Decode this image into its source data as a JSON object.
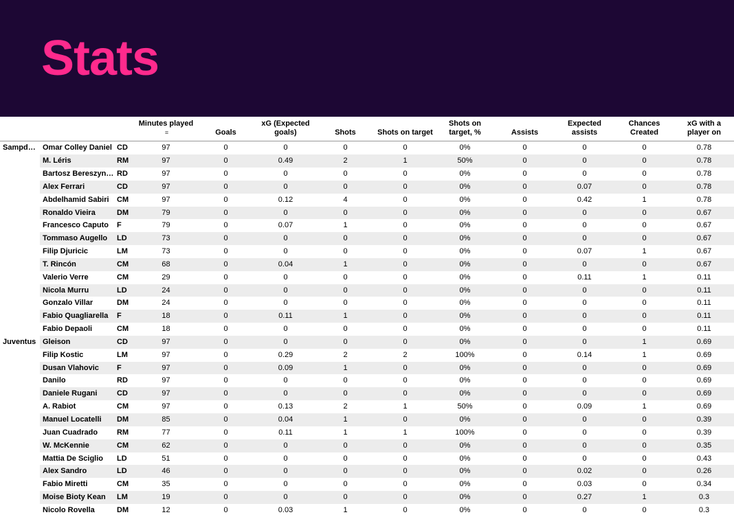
{
  "header": {
    "title": "Stats"
  },
  "colors": {
    "header_bg": "#1d0734",
    "title_color": "#ff2a8d",
    "row_alt_bg": "#ececec",
    "border_color": "#999999"
  },
  "table": {
    "sort_column_index": 3,
    "columns": [
      "",
      "",
      "",
      "Minutes played",
      "Goals",
      "xG (Expected goals)",
      "Shots",
      "Shots on target",
      "Shots on target, %",
      "Assists",
      "Expected assists",
      "Chances Created",
      "xG with a player on"
    ],
    "groups": [
      {
        "team": "Sampdoria",
        "rows": [
          [
            "Omar Colley Daniel",
            "CD",
            "97",
            "0",
            "0",
            "0",
            "0",
            "0%",
            "0",
            "0",
            "0",
            "0.78"
          ],
          [
            "M. Léris",
            "RM",
            "97",
            "0",
            "0.49",
            "2",
            "1",
            "50%",
            "0",
            "0",
            "0",
            "0.78"
          ],
          [
            "Bartosz Bereszynski",
            "RD",
            "97",
            "0",
            "0",
            "0",
            "0",
            "0%",
            "0",
            "0",
            "0",
            "0.78"
          ],
          [
            "Alex Ferrari",
            "CD",
            "97",
            "0",
            "0",
            "0",
            "0",
            "0%",
            "0",
            "0.07",
            "0",
            "0.78"
          ],
          [
            "Abdelhamid Sabiri",
            "CM",
            "97",
            "0",
            "0.12",
            "4",
            "0",
            "0%",
            "0",
            "0.42",
            "1",
            "0.78"
          ],
          [
            "Ronaldo Vieira",
            "DM",
            "79",
            "0",
            "0",
            "0",
            "0",
            "0%",
            "0",
            "0",
            "0",
            "0.67"
          ],
          [
            "Francesco Caputo",
            "F",
            "79",
            "0",
            "0.07",
            "1",
            "0",
            "0%",
            "0",
            "0",
            "0",
            "0.67"
          ],
          [
            "Tommaso Augello",
            "LD",
            "73",
            "0",
            "0",
            "0",
            "0",
            "0%",
            "0",
            "0",
            "0",
            "0.67"
          ],
          [
            "Filip Djuricic",
            "LM",
            "73",
            "0",
            "0",
            "0",
            "0",
            "0%",
            "0",
            "0.07",
            "1",
            "0.67"
          ],
          [
            "T. Rincón",
            "CM",
            "68",
            "0",
            "0.04",
            "1",
            "0",
            "0%",
            "0",
            "0",
            "0",
            "0.67"
          ],
          [
            "Valerio Verre",
            "CM",
            "29",
            "0",
            "0",
            "0",
            "0",
            "0%",
            "0",
            "0.11",
            "1",
            "0.11"
          ],
          [
            "Nicola Murru",
            "LD",
            "24",
            "0",
            "0",
            "0",
            "0",
            "0%",
            "0",
            "0",
            "0",
            "0.11"
          ],
          [
            "Gonzalo Villar",
            "DM",
            "24",
            "0",
            "0",
            "0",
            "0",
            "0%",
            "0",
            "0",
            "0",
            "0.11"
          ],
          [
            "Fabio Quagliarella",
            "F",
            "18",
            "0",
            "0.11",
            "1",
            "0",
            "0%",
            "0",
            "0",
            "0",
            "0.11"
          ],
          [
            "Fabio Depaoli",
            "CM",
            "18",
            "0",
            "0",
            "0",
            "0",
            "0%",
            "0",
            "0",
            "0",
            "0.11"
          ]
        ]
      },
      {
        "team": "Juventus",
        "rows": [
          [
            "Gleison",
            "CD",
            "97",
            "0",
            "0",
            "0",
            "0",
            "0%",
            "0",
            "0",
            "1",
            "0.69"
          ],
          [
            "Filip Kostic",
            "LM",
            "97",
            "0",
            "0.29",
            "2",
            "2",
            "100%",
            "0",
            "0.14",
            "1",
            "0.69"
          ],
          [
            "Dusan Vlahovic",
            "F",
            "97",
            "0",
            "0.09",
            "1",
            "0",
            "0%",
            "0",
            "0",
            "0",
            "0.69"
          ],
          [
            "Danilo",
            "RD",
            "97",
            "0",
            "0",
            "0",
            "0",
            "0%",
            "0",
            "0",
            "0",
            "0.69"
          ],
          [
            "Daniele Rugani",
            "CD",
            "97",
            "0",
            "0",
            "0",
            "0",
            "0%",
            "0",
            "0",
            "0",
            "0.69"
          ],
          [
            "A. Rabiot",
            "CM",
            "97",
            "0",
            "0.13",
            "2",
            "1",
            "50%",
            "0",
            "0.09",
            "1",
            "0.69"
          ],
          [
            "Manuel Locatelli",
            "DM",
            "85",
            "0",
            "0.04",
            "1",
            "0",
            "0%",
            "0",
            "0",
            "0",
            "0.39"
          ],
          [
            "Juan Cuadrado",
            "RM",
            "77",
            "0",
            "0.11",
            "1",
            "1",
            "100%",
            "0",
            "0",
            "0",
            "0.39"
          ],
          [
            "W. McKennie",
            "CM",
            "62",
            "0",
            "0",
            "0",
            "0",
            "0%",
            "0",
            "0",
            "0",
            "0.35"
          ],
          [
            "Mattia De Sciglio",
            "LD",
            "51",
            "0",
            "0",
            "0",
            "0",
            "0%",
            "0",
            "0",
            "0",
            "0.43"
          ],
          [
            "Alex Sandro",
            "LD",
            "46",
            "0",
            "0",
            "0",
            "0",
            "0%",
            "0",
            "0.02",
            "0",
            "0.26"
          ],
          [
            "Fabio Miretti",
            "CM",
            "35",
            "0",
            "0",
            "0",
            "0",
            "0%",
            "0",
            "0.03",
            "0",
            "0.34"
          ],
          [
            "Moise Bioty Kean",
            "LM",
            "19",
            "0",
            "0",
            "0",
            "0",
            "0%",
            "0",
            "0.27",
            "1",
            "0.3"
          ],
          [
            "Nicolo Rovella",
            "DM",
            "12",
            "0",
            "0.03",
            "1",
            "0",
            "0%",
            "0",
            "0",
            "0",
            "0.3"
          ]
        ]
      }
    ]
  }
}
